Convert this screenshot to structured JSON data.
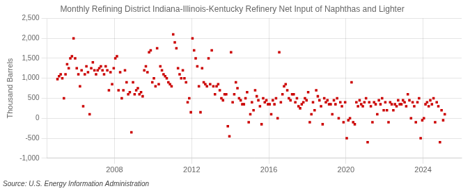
{
  "chart_data": {
    "type": "scatter",
    "title": "Monthly Refining District Indiana-Illinois-Kentucky Refinery Net Input of Naphthas and Lighter",
    "ylabel": "Thousand Barrels",
    "annotations": [
      "Source: U.S. Energy Information Administration"
    ],
    "color": "#cc0000",
    "marker": "square",
    "grid": true,
    "xlim": [
      2004.5,
      2026.0
    ],
    "xticks": [
      2008,
      2012,
      2016,
      2020,
      2024
    ],
    "ylim": [
      -1000,
      2500
    ],
    "yticks": [
      {
        "value": -1000,
        "label": "-1,000"
      },
      -500,
      0,
      500,
      {
        "value": 1000,
        "label": "1,000"
      },
      {
        "value": 1500,
        "label": "1,500"
      },
      {
        "value": 2000,
        "label": "2,000"
      },
      {
        "value": 2500,
        "label": "2,500"
      }
    ],
    "x": [
      2005.0416666666667,
      2005.125,
      2005.2083333333333,
      2005.2916666666667,
      2005.375,
      2005.4583333333333,
      2005.5416666666667,
      2005.625,
      2005.7083333333333,
      2005.7916666666667,
      2005.875,
      2005.9583333333333,
      2006.0416666666667,
      2006.125,
      2006.2083333333333,
      2006.2916666666667,
      2006.375,
      2006.4583333333333,
      2006.5416666666667,
      2006.625,
      2006.7083333333333,
      2006.7916666666667,
      2006.875,
      2006.9583333333333,
      2007.0416666666667,
      2007.125,
      2007.2083333333333,
      2007.2916666666667,
      2007.375,
      2007.4583333333333,
      2007.5416666666667,
      2007.625,
      2007.7083333333333,
      2007.7916666666667,
      2007.875,
      2007.9583333333333,
      2008.0416666666667,
      2008.125,
      2008.2083333333333,
      2008.2916666666667,
      2008.375,
      2008.4583333333333,
      2008.5416666666667,
      2008.625,
      2008.7083333333333,
      2008.7916666666667,
      2008.875,
      2008.9583333333333,
      2009.0416666666667,
      2009.125,
      2009.2083333333333,
      2009.2916666666667,
      2009.375,
      2009.4583333333333,
      2009.5416666666667,
      2009.625,
      2009.7083333333333,
      2009.7916666666667,
      2009.875,
      2009.9583333333333,
      2010.0416666666667,
      2010.125,
      2010.2083333333333,
      2010.2916666666667,
      2010.375,
      2010.4583333333333,
      2010.5416666666667,
      2010.625,
      2010.7083333333333,
      2010.7916666666667,
      2010.875,
      2010.9583333333333,
      2011.0416666666667,
      2011.125,
      2011.2083333333333,
      2011.2916666666667,
      2011.375,
      2011.4583333333333,
      2011.5416666666667,
      2011.625,
      2011.7083333333333,
      2011.7916666666667,
      2011.875,
      2011.9583333333333,
      2012.0416666666667,
      2012.125,
      2012.2083333333333,
      2012.2916666666667,
      2012.375,
      2012.4583333333333,
      2012.5416666666667,
      2012.625,
      2012.7083333333333,
      2012.7916666666667,
      2012.875,
      2012.9583333333333,
      2013.0416666666667,
      2013.125,
      2013.2083333333333,
      2013.2916666666667,
      2013.375,
      2013.4583333333333,
      2013.5416666666667,
      2013.625,
      2013.7083333333333,
      2013.7916666666667,
      2013.875,
      2013.9583333333333,
      2014.0416666666667,
      2014.125,
      2014.2083333333333,
      2014.2916666666667,
      2014.375,
      2014.4583333333333,
      2014.5416666666667,
      2014.625,
      2014.7083333333333,
      2014.7916666666667,
      2014.875,
      2014.9583333333333,
      2015.0416666666667,
      2015.125,
      2015.2083333333333,
      2015.2916666666667,
      2015.375,
      2015.4583333333333,
      2015.5416666666667,
      2015.625,
      2015.7083333333333,
      2015.7916666666667,
      2015.875,
      2015.9583333333333,
      2016.0416666666667,
      2016.125,
      2016.2083333333333,
      2016.2916666666667,
      2016.375,
      2016.4583333333333,
      2016.5416666666667,
      2016.625,
      2016.7083333333333,
      2016.7916666666667,
      2016.875,
      2016.9583333333333,
      2017.0416666666667,
      2017.125,
      2017.2083333333333,
      2017.2916666666667,
      2017.375,
      2017.4583333333333,
      2017.5416666666667,
      2017.625,
      2017.7083333333333,
      2017.7916666666667,
      2017.875,
      2017.9583333333333,
      2018.0416666666667,
      2018.125,
      2018.2083333333333,
      2018.2916666666667,
      2018.375,
      2018.4583333333333,
      2018.5416666666667,
      2018.625,
      2018.7083333333333,
      2018.7916666666667,
      2018.875,
      2018.9583333333333,
      2019.0416666666667,
      2019.125,
      2019.2083333333333,
      2019.2916666666667,
      2019.375,
      2019.4583333333333,
      2019.5416666666667,
      2019.625,
      2019.7083333333333,
      2019.7916666666667,
      2019.875,
      2019.9583333333333,
      2020.0416666666667,
      2020.125,
      2020.2083333333333,
      2020.2916666666667,
      2020.375,
      2020.4583333333333,
      2020.5416666666667,
      2020.625,
      2020.7083333333333,
      2020.7916666666667,
      2020.875,
      2020.9583333333333,
      2021.0416666666667,
      2021.125,
      2021.2083333333333,
      2021.2916666666667,
      2021.375,
      2021.4583333333333,
      2021.5416666666667,
      2021.625,
      2021.7083333333333,
      2021.7916666666667,
      2021.875,
      2021.9583333333333,
      2022.0416666666667,
      2022.125,
      2022.2083333333333,
      2022.2916666666667,
      2022.375,
      2022.4583333333333,
      2022.5416666666667,
      2022.625,
      2022.7083333333333,
      2022.7916666666667,
      2022.875,
      2022.9583333333333,
      2023.0416666666667,
      2023.125,
      2023.2083333333333,
      2023.2916666666667,
      2023.375,
      2023.4583333333333,
      2023.5416666666667,
      2023.625,
      2023.7083333333333,
      2023.7916666666667,
      2023.875,
      2023.9583333333333,
      2024.0416666666667,
      2024.125,
      2024.2083333333333,
      2024.2916666666667,
      2024.375,
      2024.4583333333333,
      2024.5416666666667,
      2024.625,
      2024.7083333333333,
      2024.7916666666667,
      2024.875,
      2024.9583333333333,
      2025.0416666666667,
      2025.125
    ],
    "values": [
      980,
      1050,
      1100,
      1000,
      500,
      1100,
      1350,
      1250,
      1500,
      1550,
      2000,
      1500,
      1250,
      1100,
      800,
      1200,
      300,
      1100,
      1300,
      1150,
      100,
      1250,
      1400,
      1200,
      1100,
      1200,
      1250,
      1300,
      1200,
      1100,
      1300,
      1200,
      700,
      1150,
      850,
      1250,
      1500,
      1550,
      700,
      1150,
      500,
      700,
      1200,
      900,
      600,
      650,
      -350,
      900,
      600,
      700,
      750,
      600,
      650,
      550,
      1200,
      1300,
      1150,
      1650,
      1700,
      900,
      1000,
      800,
      1750,
      850,
      1300,
      1200,
      1100,
      1050,
      1000,
      900,
      850,
      800,
      2100,
      1900,
      1750,
      1250,
      1100,
      1000,
      1200,
      1000,
      900,
      400,
      500,
      150,
      2000,
      1700,
      1500,
      1300,
      800,
      150,
      1250,
      900,
      850,
      800,
      1500,
      850,
      1700,
      800,
      600,
      800,
      850,
      700,
      500,
      450,
      600,
      600,
      -200,
      -450,
      1650,
      400,
      600,
      900,
      750,
      500,
      450,
      350,
      350,
      500,
      650,
      -100,
      100,
      400,
      200,
      700,
      550,
      450,
      300,
      -150,
      500,
      400,
      450,
      350,
      350,
      100,
      450,
      350,
      500,
      0,
      1650,
      400,
      600,
      800,
      850,
      700,
      500,
      450,
      600,
      600,
      400,
      500,
      300,
      250,
      350,
      400,
      500,
      450,
      650,
      -100,
      100,
      400,
      200,
      700,
      550,
      450,
      300,
      -150,
      500,
      400,
      450,
      350,
      350,
      100,
      450,
      350,
      500,
      0,
      400,
      300,
      -100,
      400,
      -500,
      -50,
      0,
      900,
      -100,
      -150,
      400,
      300,
      450,
      350,
      300,
      400,
      500,
      -600,
      400,
      300,
      -100,
      400,
      350,
      100,
      450,
      350,
      500,
      200,
      400,
      200,
      -100,
      400,
      350,
      200,
      350,
      300,
      450,
      350,
      350,
      450,
      400,
      300,
      600,
      450,
      0,
      400,
      300,
      -100,
      400,
      500,
      -500,
      -50,
      0,
      350,
      400,
      300,
      450,
      350,
      500,
      -100,
      400,
      300,
      -600,
      200,
      -50,
      100
    ]
  }
}
